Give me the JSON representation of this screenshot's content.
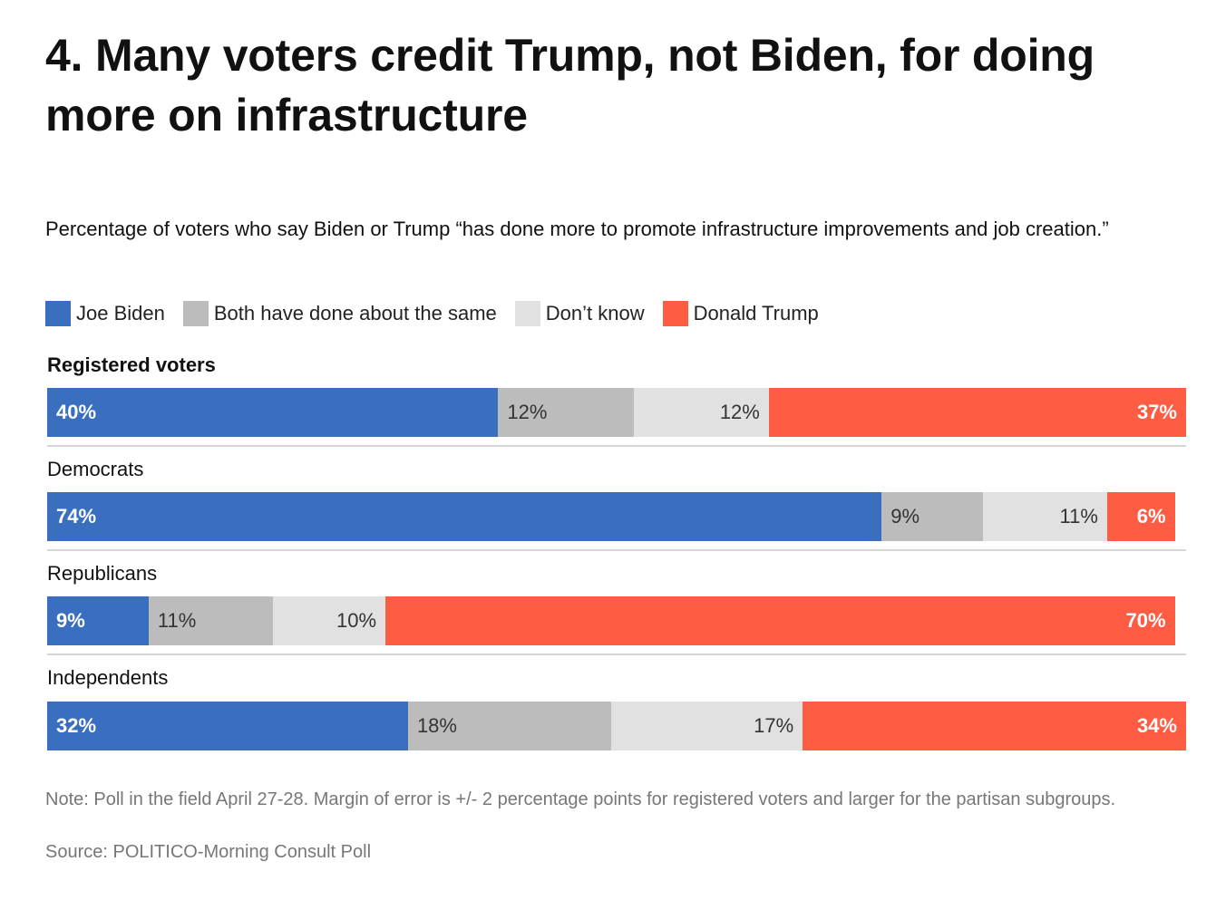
{
  "title": "4. Many voters credit Trump, not Biden, for doing more on infrastructure",
  "subtitle": "Percentage of voters who say Biden or Trump “has done more to promote infrastructure improvements and job creation.”",
  "legend": [
    {
      "label": "Joe Biden",
      "color": "#3a6fbf"
    },
    {
      "label": "Both have done about the same",
      "color": "#bcbcbc"
    },
    {
      "label": "Don’t know",
      "color": "#e1e1e1"
    },
    {
      "label": "Donald Trump",
      "color": "#ff5c44"
    }
  ],
  "note": "Note: Poll in the field April 27-28. Margin of error is +/- 2 percentage points for registered voters and larger for the partisan subgroups.",
  "source": "Source: POLITICO-Morning Consult Poll",
  "chart_data": {
    "type": "bar",
    "orientation": "horizontal",
    "stacked": true,
    "categories": [
      "Registered voters",
      "Democrats",
      "Republicans",
      "Independents"
    ],
    "series": [
      {
        "name": "Joe Biden",
        "values": [
          40,
          74,
          9,
          32
        ],
        "labels": [
          "40%",
          "74%",
          "9%",
          "32%"
        ]
      },
      {
        "name": "Both have done about the same",
        "values": [
          12,
          9,
          11,
          18
        ],
        "labels": [
          "12%",
          "9%",
          "11%",
          "18%"
        ]
      },
      {
        "name": "Don’t know",
        "values": [
          12,
          11,
          10,
          17
        ],
        "labels": [
          "12%",
          "11%",
          "10%",
          "17%"
        ]
      },
      {
        "name": "Donald Trump",
        "values": [
          37,
          6,
          70,
          34
        ],
        "labels": [
          "37%",
          "6%",
          "70%",
          "34%"
        ]
      }
    ],
    "xlim": [
      0,
      101
    ],
    "legend_position": "top-left",
    "grid": false
  }
}
